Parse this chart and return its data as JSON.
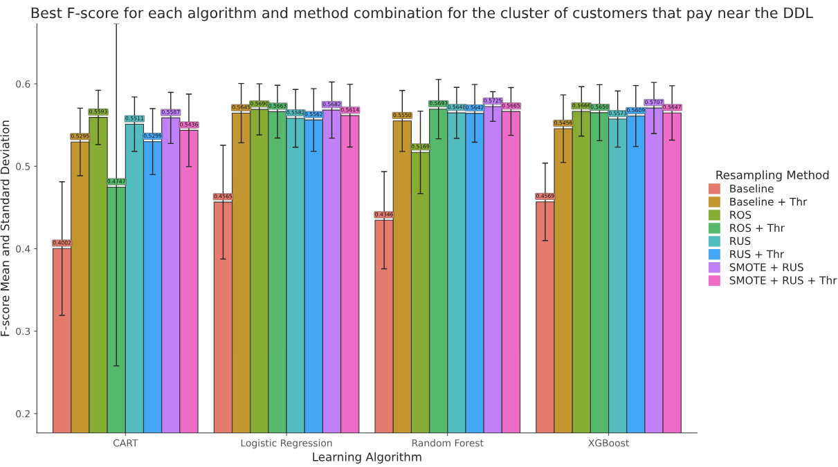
{
  "chart_data": {
    "type": "bar",
    "title": "Best F-score for each algorithm and method combination for the cluster of customers that pay near the DDL",
    "xlabel": "Learning Algorithm",
    "ylabel": "F-score Mean and Standard Deviation",
    "legend_title": "Resampling Method",
    "categories": [
      "CART",
      "Logistic Regression",
      "Random Forest",
      "XGBoost"
    ],
    "series": [
      {
        "name": "Baseline",
        "color": "#e57b6e",
        "values": [
          0.4002,
          0.4565,
          0.4346,
          0.4569
        ],
        "errors": [
          0.081,
          0.069,
          0.059,
          0.047
        ],
        "value_labels": [
          "0.4002",
          "0.4565",
          "0.4346",
          "0.4569"
        ]
      },
      {
        "name": "Baseline + Thr",
        "color": "#c4962f",
        "values": [
          0.5295,
          0.5645,
          0.555,
          0.5456
        ],
        "errors": [
          0.041,
          0.036,
          0.037,
          0.041
        ],
        "value_labels": [
          "0.5295",
          "0.5645",
          "0.5550",
          "0.5456"
        ]
      },
      {
        "name": "ROS",
        "color": "#87ac34",
        "values": [
          0.5593,
          0.569,
          0.5169,
          0.5666
        ],
        "errors": [
          0.033,
          0.031,
          0.05,
          0.03
        ],
        "value_labels": [
          "0.5593",
          "0.5690",
          "0.5169",
          "0.5666"
        ]
      },
      {
        "name": "ROS + Thr",
        "color": "#55b86c",
        "values": [
          0.4747,
          0.5663,
          0.5693,
          0.565
        ],
        "errors": [
          [
            0.2579,
            0.6728
          ],
          0.032,
          0.036,
          0.034
        ],
        "value_labels": [
          "0.4747",
          "0.5663",
          "0.5693",
          "0.5650"
        ]
      },
      {
        "name": "RUS",
        "color": "#52bcbf",
        "values": [
          0.5511,
          0.5582,
          0.5648,
          0.5573
        ],
        "errors": [
          0.033,
          0.035,
          0.031,
          0.034
        ],
        "value_labels": [
          "0.5511",
          "0.5582",
          "0.5648",
          "0.5573"
        ]
      },
      {
        "name": "RUS + Thr",
        "color": "#44a7f5",
        "values": [
          0.5299,
          0.5562,
          0.5642,
          0.5609
        ],
        "errors": [
          0.04,
          0.038,
          0.035,
          0.037
        ],
        "value_labels": [
          "0.5299",
          "0.5562",
          "0.5642",
          "0.5609"
        ]
      },
      {
        "name": "SMOTE + RUS",
        "color": "#bf81f5",
        "values": [
          0.5587,
          0.5682,
          0.5725,
          0.5707
        ],
        "errors": [
          0.031,
          0.034,
          0.018,
          0.031
        ],
        "value_labels": [
          "0.5587",
          "0.5682",
          "0.5725",
          "0.5707"
        ]
      },
      {
        "name": "SMOTE + RUS + Thr",
        "color": "#ec6cc6",
        "values": [
          0.5436,
          0.5614,
          0.5665,
          0.5647
        ],
        "errors": [
          0.044,
          0.038,
          0.029,
          0.033
        ],
        "value_labels": [
          "0.5436",
          "0.5614",
          "0.5665",
          "0.5647"
        ]
      }
    ],
    "ylim": [
      0.1766,
      0.6728
    ],
    "yticks": [
      0.2,
      0.3,
      0.4,
      0.5,
      0.6
    ],
    "grid": false,
    "legend": "right"
  }
}
